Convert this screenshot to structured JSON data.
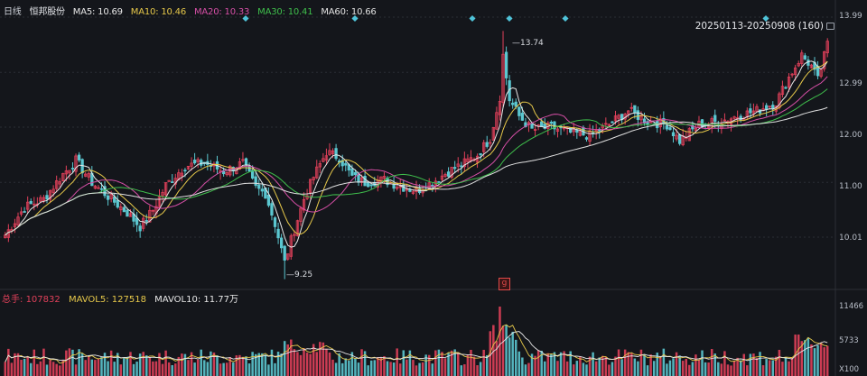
{
  "header": {
    "period_label": "日线",
    "stock_name": "恒邦股份",
    "ma": [
      {
        "label": "MA5:",
        "value": "10.69",
        "color": "#e8e8e8"
      },
      {
        "label": "MA10:",
        "value": "10.46",
        "color": "#e6c84a"
      },
      {
        "label": "MA20:",
        "value": "10.33",
        "color": "#d64fa6"
      },
      {
        "label": "MA30:",
        "value": "10.41",
        "color": "#3fbf4c"
      },
      {
        "label": "MA60:",
        "value": "10.66",
        "color": "#e0e0e0"
      }
    ],
    "range_label": "20250113-20250908 (160)"
  },
  "volume_header": {
    "total_label": "总手:",
    "total_value": "107832",
    "mavol5_label": "MAVOL5:",
    "mavol5_value": "127518",
    "mavol10_label": "MAVOL10:",
    "mavol10_value": "11.77万"
  },
  "chart_data": {
    "type": "candlestick",
    "price_axis": {
      "ticks": [
        "13.99",
        "12.99",
        "12.00",
        "11.00",
        "10.01"
      ],
      "tick_values": [
        13.99,
        12.99,
        12.0,
        11.0,
        10.01
      ]
    },
    "volume_axis": {
      "ticks": [
        "11466",
        "5733",
        "X100"
      ]
    },
    "annotations": {
      "high_label": "13.74",
      "low_label": "9.25",
      "marker": "g"
    },
    "summary": {
      "bars": 160,
      "start": "20250113",
      "end": "20250908",
      "high": 13.74,
      "low": 9.25
    },
    "colors": {
      "up": "#e0405a",
      "down": "#5bc7d0",
      "ma5": "#e8e8e8",
      "ma10": "#e6c84a",
      "ma20": "#d64fa6",
      "ma30": "#3fbf4c",
      "ma60": "#e0e0e0"
    }
  }
}
